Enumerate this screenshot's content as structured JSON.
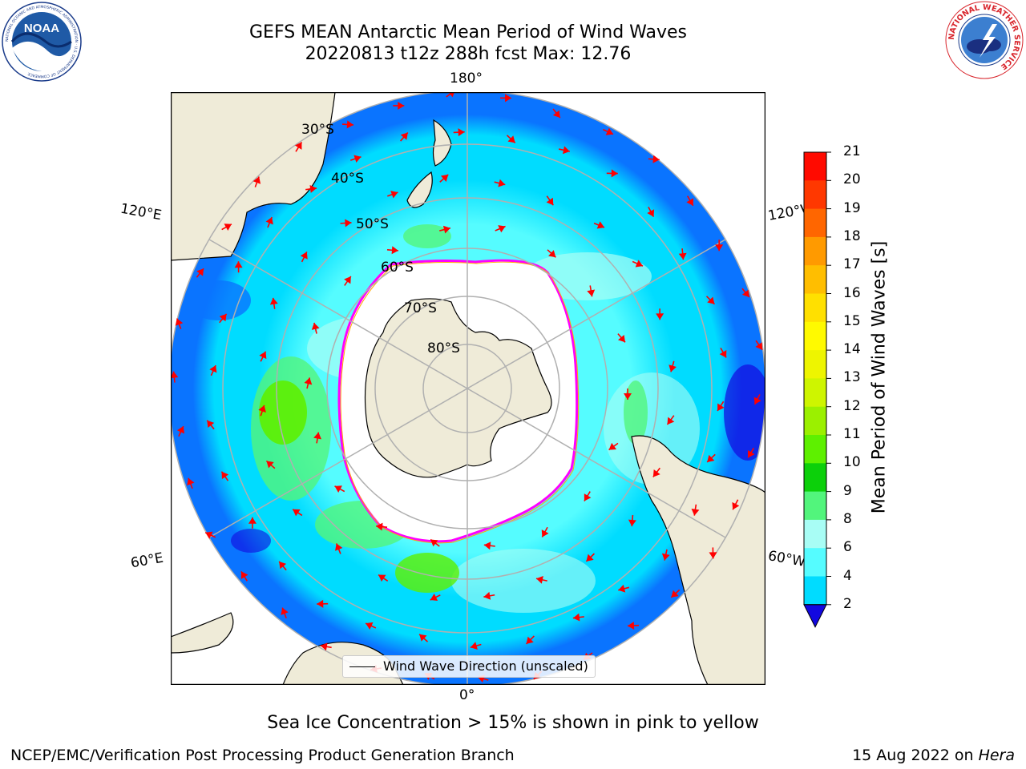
{
  "title": {
    "line1": "GEFS MEAN Antarctic Mean Period of Wind Waves",
    "line2": "20220813 t12z 288h fcst   Max: 12.76"
  },
  "map": {
    "projection": "south polar stereographic",
    "longitude_labels": {
      "top": "180°",
      "bottom": "0°",
      "upper_left": "120°E",
      "upper_right": "120°W",
      "lower_left": "60°E",
      "lower_right": "60°W"
    },
    "latitude_labels": [
      "30°S",
      "40°S",
      "50°S",
      "60°S",
      "70°S",
      "80°S"
    ],
    "legend": "Wind Wave Direction (unscaled)",
    "arrow_color": "#ff0000",
    "land_color": "#efebd8",
    "sea_ice_edge_colors": [
      "#ff00ff",
      "#ffaa00",
      "#ffff00"
    ]
  },
  "colorbar": {
    "label": "Mean Period of Wind Waves [s]",
    "ticks": [
      "2",
      "4",
      "6",
      "8",
      "9",
      "10",
      "11",
      "12",
      "13",
      "14",
      "15",
      "16",
      "17",
      "18",
      "19",
      "20",
      "21"
    ],
    "colors": [
      "#0a74ff",
      "#00dcff",
      "#55fcff",
      "#a8fdf5",
      "#52f57c",
      "#0cd00a",
      "#5ef000",
      "#9bf000",
      "#cef500",
      "#eef500",
      "#fffa00",
      "#ffe000",
      "#ffbe00",
      "#ff9a00",
      "#ff6600",
      "#ff3800",
      "#ff0a00"
    ],
    "under_color": "#1208e0"
  },
  "chart_data": {
    "type": "heatmap",
    "variable": "Mean Period of Wind Waves",
    "units": "s",
    "max": 12.76,
    "valid_date": "20220813",
    "cycle": "t12z",
    "forecast_hour": 288
  },
  "subtitle": "Sea Ice Concentration > 15% is shown in pink to yellow",
  "footer": {
    "left": "NCEP/EMC/Verification Post Processing Product Generation Branch",
    "right_date": "15 Aug 2022 on ",
    "right_host": "Hera"
  },
  "logos": {
    "noaa": "NOAA",
    "noaa_ring": "NATIONAL OCEANIC AND ATMOSPHERIC ADMINISTRATION · U.S. DEPARTMENT OF COMMERCE",
    "nws": "NATIONAL WEATHER SERVICE"
  }
}
